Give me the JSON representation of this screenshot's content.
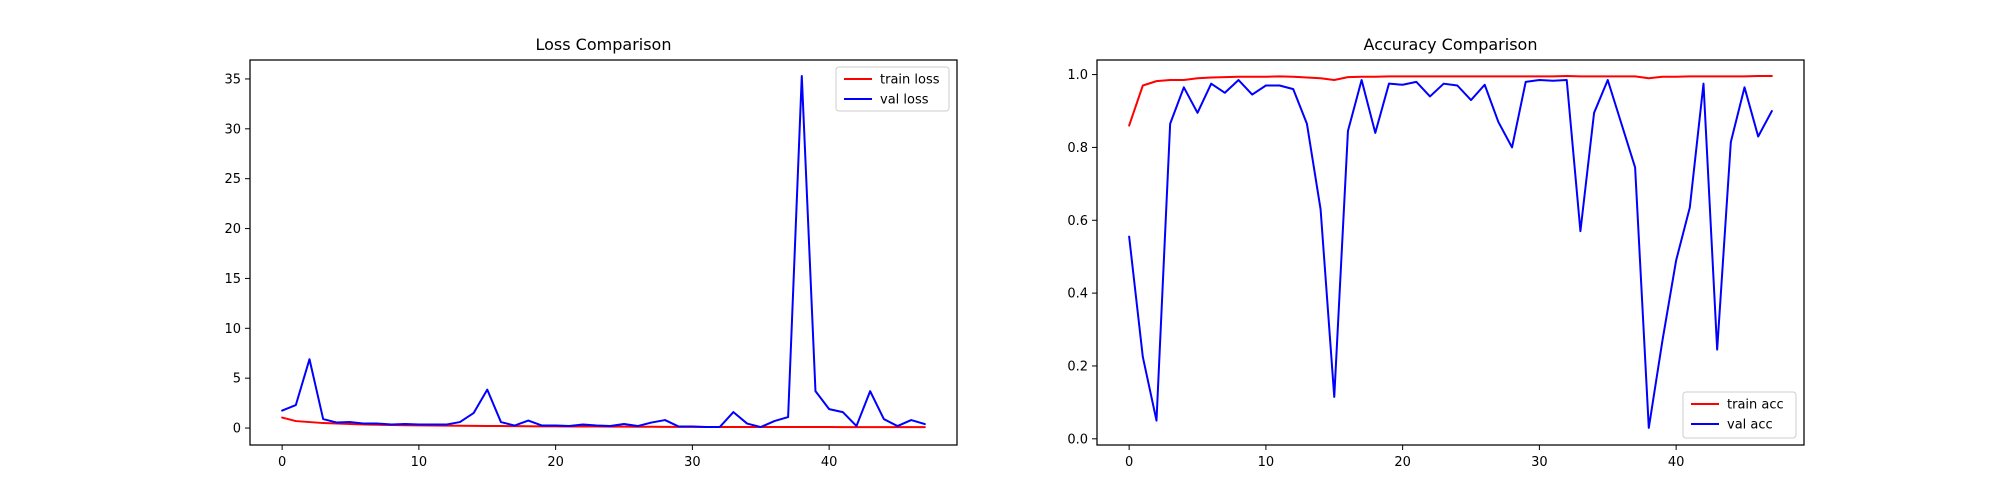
{
  "chart_data": [
    {
      "type": "line",
      "title": "Loss Comparison",
      "xlabel": "",
      "ylabel": "",
      "xlim": [
        -2.35,
        49.35
      ],
      "ylim": [
        -1.7,
        36.9
      ],
      "xticks": [
        0,
        10,
        20,
        30,
        40
      ],
      "yticks": [
        0,
        5,
        10,
        15,
        20,
        25,
        30,
        35
      ],
      "grid": false,
      "legend_position": "top-right",
      "x": [
        0,
        1,
        2,
        3,
        4,
        5,
        6,
        7,
        8,
        9,
        10,
        11,
        12,
        13,
        14,
        15,
        16,
        17,
        18,
        19,
        20,
        21,
        22,
        23,
        24,
        25,
        26,
        27,
        28,
        29,
        30,
        31,
        32,
        33,
        34,
        35,
        36,
        37,
        38,
        39,
        40,
        41,
        42,
        43,
        44,
        45,
        46,
        47
      ],
      "series": [
        {
          "name": "train loss",
          "color": "#ff0000",
          "values": [
            1.05,
            0.7,
            0.6,
            0.5,
            0.45,
            0.4,
            0.36,
            0.33,
            0.3,
            0.28,
            0.27,
            0.25,
            0.24,
            0.23,
            0.22,
            0.21,
            0.2,
            0.19,
            0.18,
            0.17,
            0.17,
            0.16,
            0.15,
            0.15,
            0.14,
            0.14,
            0.13,
            0.13,
            0.12,
            0.12,
            0.12,
            0.11,
            0.11,
            0.11,
            0.1,
            0.1,
            0.1,
            0.1,
            0.1,
            0.1,
            0.1,
            0.09,
            0.09,
            0.09,
            0.09,
            0.09,
            0.09,
            0.09
          ]
        },
        {
          "name": "val loss",
          "color": "#0000ff",
          "values": [
            1.75,
            2.3,
            6.9,
            0.9,
            0.55,
            0.6,
            0.45,
            0.45,
            0.35,
            0.4,
            0.35,
            0.35,
            0.35,
            0.6,
            1.5,
            3.85,
            0.6,
            0.25,
            0.75,
            0.25,
            0.25,
            0.2,
            0.35,
            0.25,
            0.2,
            0.4,
            0.2,
            0.55,
            0.8,
            0.15,
            0.15,
            0.1,
            0.1,
            1.6,
            0.45,
            0.1,
            0.7,
            1.1,
            35.3,
            3.7,
            1.9,
            1.6,
            0.2,
            3.7,
            0.9,
            0.2,
            0.8,
            0.4
          ]
        }
      ]
    },
    {
      "type": "line",
      "title": "Accuracy Comparison",
      "xlabel": "",
      "ylabel": "",
      "xlim": [
        -2.35,
        49.35
      ],
      "ylim": [
        -0.017,
        1.04
      ],
      "xticks": [
        0,
        10,
        20,
        30,
        40
      ],
      "yticks": [
        0.0,
        0.2,
        0.4,
        0.6,
        0.8,
        1.0
      ],
      "ytick_labels": [
        "0.0",
        "0.2",
        "0.4",
        "0.6",
        "0.8",
        "1.0"
      ],
      "grid": false,
      "legend_position": "bottom-right",
      "x": [
        0,
        1,
        2,
        3,
        4,
        5,
        6,
        7,
        8,
        9,
        10,
        11,
        12,
        13,
        14,
        15,
        16,
        17,
        18,
        19,
        20,
        21,
        22,
        23,
        24,
        25,
        26,
        27,
        28,
        29,
        30,
        31,
        32,
        33,
        34,
        35,
        36,
        37,
        38,
        39,
        40,
        41,
        42,
        43,
        44,
        45,
        46,
        47
      ],
      "series": [
        {
          "name": "train acc",
          "color": "#ff0000",
          "values": [
            0.86,
            0.97,
            0.982,
            0.985,
            0.985,
            0.99,
            0.992,
            0.993,
            0.994,
            0.994,
            0.994,
            0.995,
            0.994,
            0.992,
            0.99,
            0.985,
            0.993,
            0.994,
            0.994,
            0.995,
            0.995,
            0.995,
            0.995,
            0.995,
            0.995,
            0.995,
            0.995,
            0.995,
            0.995,
            0.995,
            0.995,
            0.995,
            0.996,
            0.995,
            0.995,
            0.995,
            0.995,
            0.995,
            0.99,
            0.994,
            0.994,
            0.995,
            0.995,
            0.995,
            0.995,
            0.995,
            0.996,
            0.996
          ]
        },
        {
          "name": "val acc",
          "color": "#0000ff",
          "values": [
            0.555,
            0.225,
            0.05,
            0.865,
            0.965,
            0.895,
            0.975,
            0.95,
            0.985,
            0.945,
            0.97,
            0.97,
            0.96,
            0.865,
            0.63,
            0.115,
            0.845,
            0.985,
            0.84,
            0.975,
            0.972,
            0.98,
            0.94,
            0.975,
            0.97,
            0.93,
            0.972,
            0.87,
            0.8,
            0.98,
            0.985,
            0.983,
            0.985,
            0.57,
            0.895,
            0.985,
            0.865,
            0.745,
            0.03,
            0.27,
            0.49,
            0.635,
            0.975,
            0.245,
            0.815,
            0.965,
            0.83,
            0.9
          ]
        }
      ]
    }
  ]
}
